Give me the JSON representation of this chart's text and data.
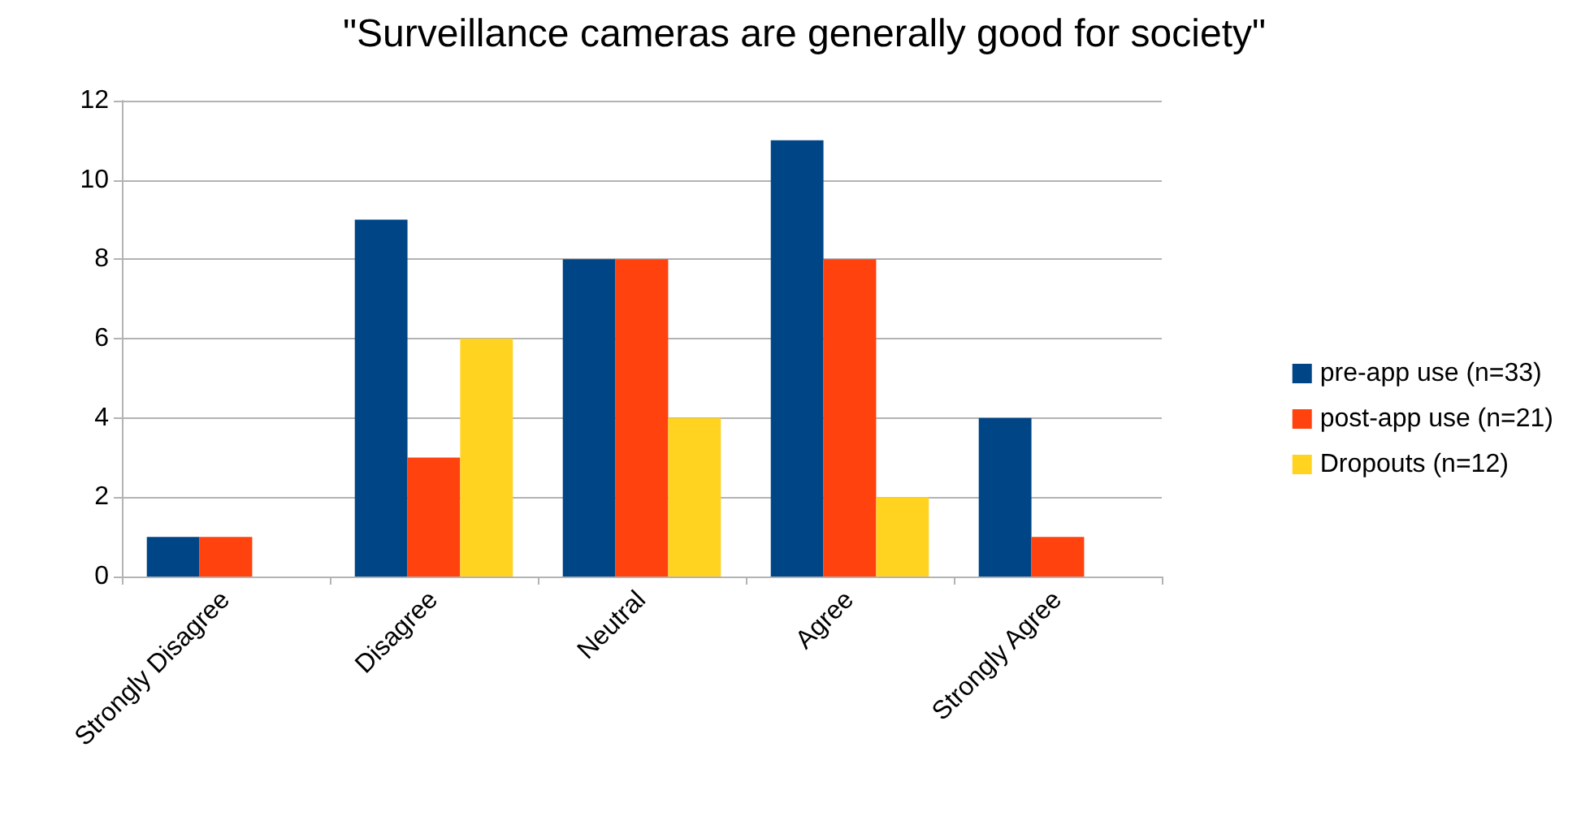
{
  "chart_data": {
    "type": "bar",
    "title": "\"Surveillance cameras are generally good for society\"",
    "categories": [
      "Strongly Disagree",
      "Disagree",
      "Neutral",
      "Agree",
      "Strongly Agree"
    ],
    "series": [
      {
        "name": "pre-app use (n=33)",
        "color": "#004586",
        "values": [
          1,
          9,
          8,
          11,
          4
        ]
      },
      {
        "name": "post-app use (n=21)",
        "color": "#ff420e",
        "values": [
          1,
          3,
          8,
          8,
          1
        ]
      },
      {
        "name": "Dropouts (n=12)",
        "color": "#ffd320",
        "values": [
          0,
          6,
          4,
          2,
          0
        ]
      }
    ],
    "ylim": [
      0,
      12
    ],
    "yticks": [
      0,
      2,
      4,
      6,
      8,
      10,
      12
    ],
    "grid": "y",
    "legend": "right"
  }
}
